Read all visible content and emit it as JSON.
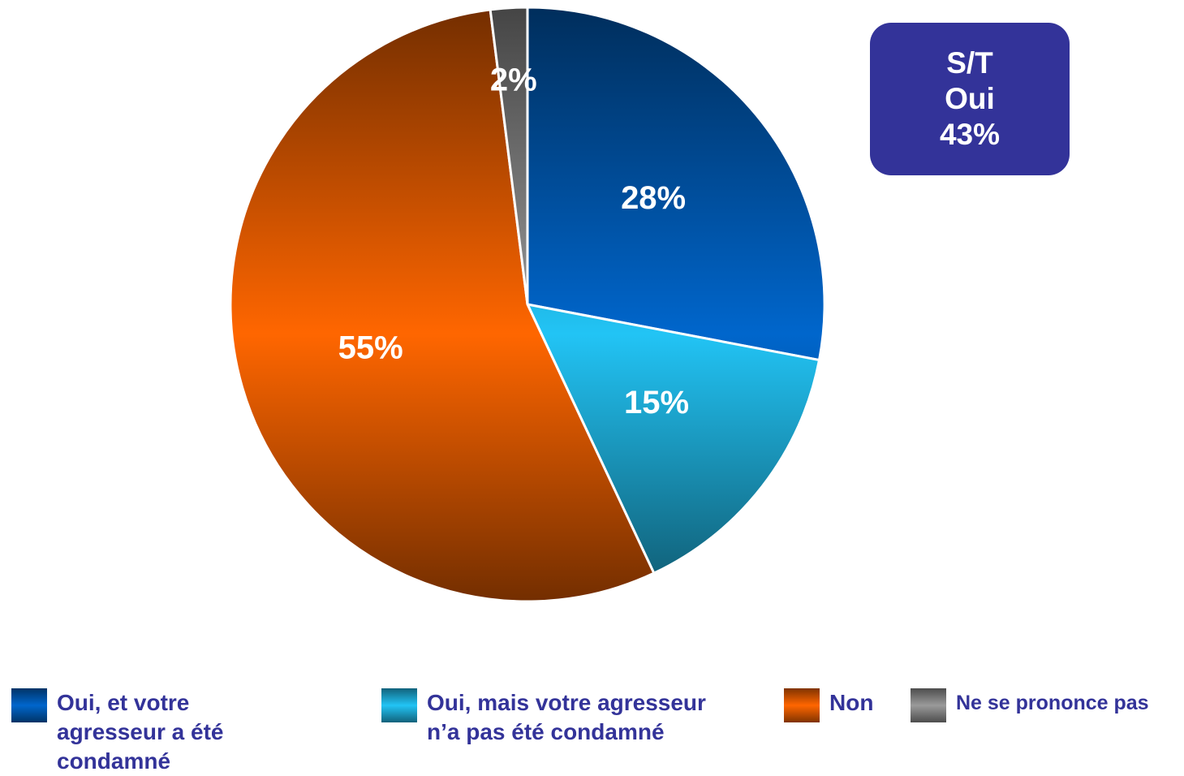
{
  "chart_data": {
    "type": "pie",
    "categories": [
      "Oui, et votre agresseur a été condamné",
      "Oui, mais votre agresseur n’a pas été condamné",
      "Non",
      "Ne se prononce pas"
    ],
    "values": [
      28,
      15,
      55,
      2
    ],
    "value_labels": [
      "28%",
      "15%",
      "55%",
      "2%"
    ],
    "colors": [
      "#0066cc",
      "#22c4f5",
      "#ff6600",
      "#9a9a9a"
    ],
    "annotation": [
      "S/T",
      "Oui",
      "43%"
    ]
  }
}
